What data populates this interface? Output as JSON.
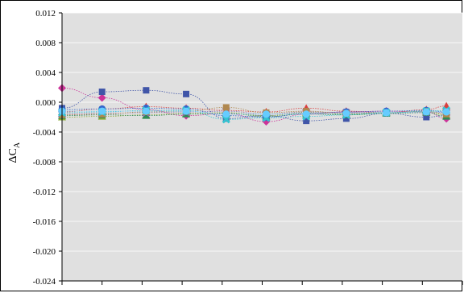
{
  "chart_data": {
    "type": "scatter",
    "title": "",
    "xlabel": "",
    "ylabel": "ΔC",
    "ylabel_sub": "A",
    "ylim": [
      -0.024,
      0.012
    ],
    "yticks": [
      0.012,
      0.008,
      0.004,
      0.0,
      -0.004,
      -0.008,
      -0.012,
      -0.016,
      -0.02,
      -0.024
    ],
    "ytick_labels": [
      "0.012",
      "0.008",
      "0.004",
      "0.000",
      "-0.004",
      "-0.008",
      "-0.012",
      "-0.016",
      "-0.020",
      "-0.024"
    ],
    "xlim": [
      0,
      10
    ],
    "xticks": [
      0,
      1,
      2,
      3,
      4,
      5,
      6,
      7,
      8,
      9,
      10
    ],
    "grid": true,
    "plot_background": "#e0e0e0",
    "x": [
      0,
      1,
      2.1,
      3.1,
      4.1,
      5.1,
      6.1,
      7.1,
      8.1,
      9.1,
      9.6
    ],
    "series": [
      {
        "color": "#cc3399",
        "marker": "diamond",
        "values": [
          0.0019,
          0.0006,
          -0.001,
          -0.0018,
          -0.0015,
          -0.0026,
          -0.0016,
          -0.0013,
          -0.0012,
          -0.0013,
          -0.0022
        ]
      },
      {
        "color": "#4055a8",
        "marker": "square",
        "values": [
          -0.0008,
          0.0014,
          0.0016,
          0.0011,
          -0.0022,
          -0.0018,
          -0.0025,
          -0.0022,
          -0.0015,
          -0.002,
          -0.0018
        ]
      },
      {
        "color": "#d94040",
        "marker": "triangle",
        "values": [
          -0.0013,
          -0.0009,
          -0.0006,
          -0.0008,
          -0.0011,
          -0.0013,
          -0.0008,
          -0.0012,
          -0.0014,
          -0.001,
          -0.0005
        ]
      },
      {
        "color": "#88aa33",
        "marker": "triangle",
        "values": [
          -0.002,
          -0.0019,
          -0.0017,
          -0.0015,
          -0.0014,
          -0.0018,
          -0.0014,
          -0.0016,
          -0.0014,
          -0.0013,
          -0.0017
        ]
      },
      {
        "color": "#2e8b57",
        "marker": "triangle",
        "values": [
          -0.0018,
          -0.0017,
          -0.0018,
          -0.0016,
          -0.0015,
          -0.0019,
          -0.0016,
          -0.0017,
          -0.0015,
          -0.0014,
          -0.0019
        ]
      },
      {
        "color": "#8a6fb0",
        "marker": "cross",
        "values": [
          -0.0016,
          -0.0015,
          -0.0014,
          -0.0013,
          -0.0012,
          -0.0016,
          -0.0013,
          -0.0014,
          -0.0014,
          -0.0013,
          -0.0014
        ]
      },
      {
        "color": "#3366cc",
        "marker": "circle",
        "values": [
          -0.001,
          -0.0009,
          -0.0008,
          -0.0009,
          -0.0018,
          -0.002,
          -0.0015,
          -0.0013,
          -0.0012,
          -0.0011,
          -0.0013
        ]
      },
      {
        "color": "#b08850",
        "marker": "square",
        "values": [
          -0.0017,
          -0.0016,
          -0.0013,
          -0.0012,
          -0.0007,
          -0.0014,
          -0.0012,
          -0.0015,
          -0.0014,
          -0.0012,
          -0.0016
        ]
      },
      {
        "color": "#35c4d0",
        "marker": "cross",
        "values": [
          -0.0014,
          -0.0013,
          -0.0011,
          -0.0011,
          -0.0023,
          -0.0021,
          -0.0019,
          -0.0017,
          -0.0014,
          -0.0012,
          -0.0011
        ]
      },
      {
        "color": "#66ccff",
        "marker": "circle",
        "values": [
          -0.0012,
          -0.0012,
          -0.0012,
          -0.0012,
          -0.0016,
          -0.0016,
          -0.0016,
          -0.0015,
          -0.0014,
          -0.0013,
          -0.0013
        ]
      }
    ]
  }
}
